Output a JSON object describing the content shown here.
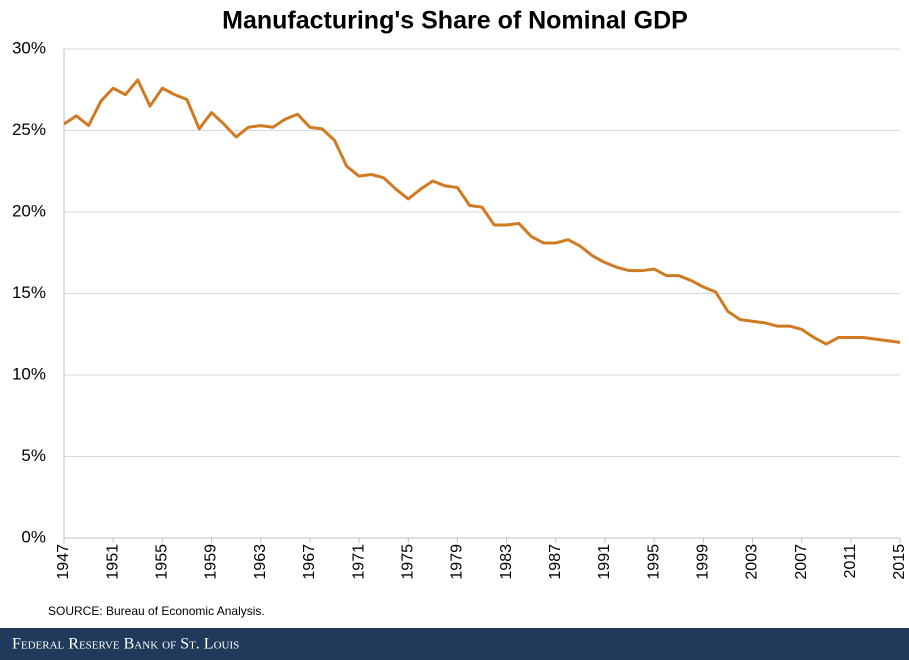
{
  "chart_data": {
    "type": "line",
    "title": "Manufacturing's Share of Nominal GDP",
    "x": [
      1947,
      1948,
      1949,
      1950,
      1951,
      1952,
      1953,
      1954,
      1955,
      1956,
      1957,
      1958,
      1959,
      1960,
      1961,
      1962,
      1963,
      1964,
      1965,
      1966,
      1967,
      1968,
      1969,
      1970,
      1971,
      1972,
      1973,
      1974,
      1975,
      1976,
      1977,
      1978,
      1979,
      1980,
      1981,
      1982,
      1983,
      1984,
      1985,
      1986,
      1987,
      1988,
      1989,
      1990,
      1991,
      1992,
      1993,
      1994,
      1995,
      1996,
      1997,
      1998,
      1999,
      2000,
      2001,
      2002,
      2003,
      2004,
      2005,
      2006,
      2007,
      2008,
      2009,
      2010,
      2011,
      2012,
      2013,
      2014,
      2015
    ],
    "series": [
      {
        "name": "Manufacturing share",
        "color": "#d07a22",
        "values": [
          25.4,
          25.9,
          25.3,
          26.8,
          27.6,
          27.2,
          28.1,
          26.5,
          27.6,
          27.2,
          26.9,
          25.1,
          26.1,
          25.4,
          24.6,
          25.2,
          25.3,
          25.2,
          25.7,
          26.0,
          25.2,
          25.1,
          24.4,
          22.8,
          22.2,
          22.3,
          22.1,
          21.4,
          20.8,
          21.4,
          21.9,
          21.6,
          21.5,
          20.4,
          20.3,
          19.2,
          19.2,
          19.3,
          18.5,
          18.1,
          18.1,
          18.3,
          17.9,
          17.3,
          16.9,
          16.6,
          16.4,
          16.4,
          16.5,
          16.1,
          16.1,
          15.8,
          15.4,
          15.1,
          13.9,
          13.4,
          13.3,
          13.2,
          13.0,
          13.0,
          12.8,
          12.3,
          11.9,
          12.3,
          12.3,
          12.3,
          12.2,
          12.1,
          12.0
        ]
      }
    ],
    "xlim": [
      1947,
      2015
    ],
    "xticks": [
      1947,
      1951,
      1955,
      1959,
      1963,
      1967,
      1971,
      1975,
      1979,
      1983,
      1987,
      1991,
      1995,
      1999,
      2003,
      2007,
      2011,
      2015
    ],
    "ylim": [
      0,
      30
    ],
    "yticks": [
      {
        "value": 0,
        "label": "0%"
      },
      {
        "value": 5,
        "label": "5%"
      },
      {
        "value": 10,
        "label": "10%"
      },
      {
        "value": 15,
        "label": "15%"
      },
      {
        "value": 20,
        "label": "20%"
      },
      {
        "value": 25,
        "label": "25%"
      },
      {
        "value": 30,
        "label": "30%"
      }
    ],
    "grid": true
  },
  "source": "SOURCE: Bureau of Economic Analysis.",
  "footer": "Federal Reserve Bank of St. Louis"
}
